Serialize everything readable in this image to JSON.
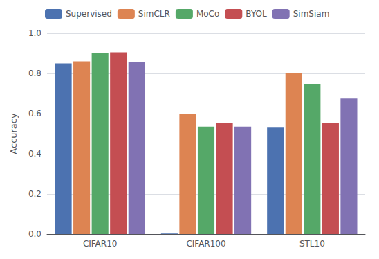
{
  "chart_data": {
    "type": "bar",
    "categories": [
      "CIFAR10",
      "CIFAR100",
      "STL10"
    ],
    "series": [
      {
        "name": "Supervised",
        "color": "#4c72b0",
        "values": [
          0.85,
          0.003,
          0.53
        ]
      },
      {
        "name": "SimCLR",
        "color": "#dd8452",
        "values": [
          0.86,
          0.6,
          0.8
        ]
      },
      {
        "name": "MoCo",
        "color": "#55a868",
        "values": [
          0.9,
          0.535,
          0.745
        ]
      },
      {
        "name": "BYOL",
        "color": "#c44e52",
        "values": [
          0.905,
          0.555,
          0.555
        ]
      },
      {
        "name": "SimSiam",
        "color": "#8172b3",
        "values": [
          0.855,
          0.535,
          0.675
        ]
      }
    ],
    "ylabel": "Accuracy",
    "ylim": [
      0,
      1
    ],
    "yticks": [
      {
        "value": 0,
        "label": "0.0"
      },
      0.2,
      0.4,
      0.6,
      0.8,
      {
        "value": 1,
        "label": "1.0"
      }
    ],
    "grid": true,
    "legend": "upper left"
  }
}
